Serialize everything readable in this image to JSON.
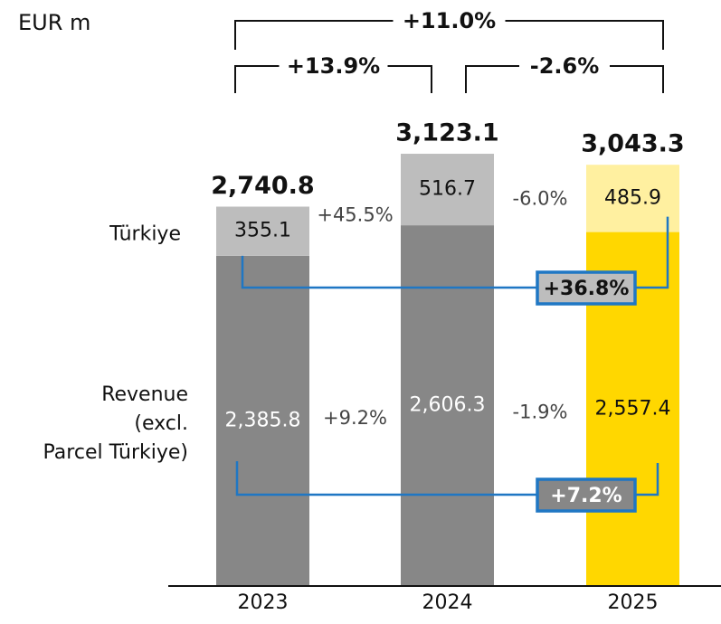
{
  "chart_data": {
    "type": "stacked_bar",
    "unit": "EUR m",
    "categories": [
      "2023",
      "2024",
      "2025"
    ],
    "series": [
      {
        "name": "Revenue\n(excl.\nParcel Türkiye)",
        "colors": [
          "#878787",
          "#878787",
          "#ffd700"
        ],
        "label_colors": [
          "#ffffff",
          "#ffffff",
          "#111111"
        ],
        "values": [
          2385.8,
          2606.3,
          2557.4
        ],
        "value_labels": [
          "2,385.8",
          "2,606.3",
          "2,557.4"
        ],
        "growth_labels": [
          "+9.2%",
          "-1.9%"
        ],
        "total_change": "+7.2%"
      },
      {
        "name": "Türkiye",
        "colors": [
          "#bdbdbd",
          "#bdbdbd",
          "#fff0a0"
        ],
        "label_colors": [
          "#111111",
          "#111111",
          "#111111"
        ],
        "values": [
          355.1,
          516.7,
          485.9
        ],
        "value_labels": [
          "355.1",
          "516.7",
          "485.9"
        ],
        "growth_labels": [
          "+45.5%",
          "-6.0%"
        ],
        "total_change": "+36.8%"
      }
    ],
    "totals": {
      "values": [
        2740.8,
        3123.1,
        3043.3
      ],
      "value_labels": [
        "2,740.8",
        "3,123.1",
        "3,043.3"
      ]
    },
    "brackets": {
      "overall": "+11.0%",
      "steps": [
        "+13.9%",
        "-2.6%"
      ]
    }
  }
}
